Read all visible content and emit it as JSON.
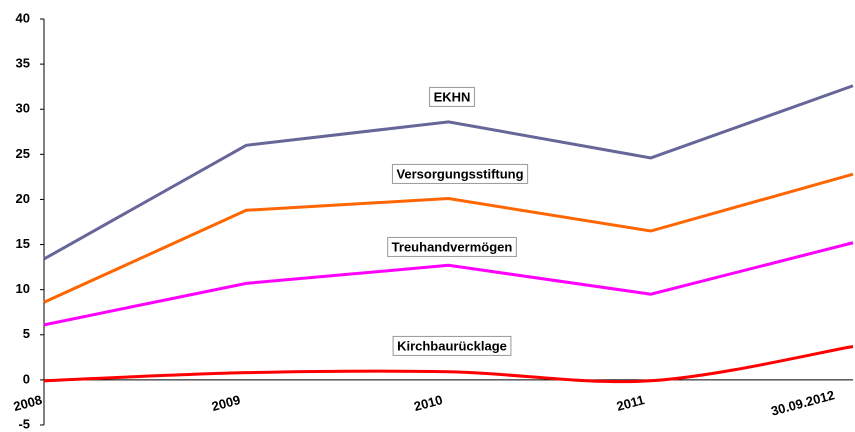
{
  "chart_data": {
    "type": "line",
    "categories": [
      "2008",
      "2009",
      "2010",
      "2011",
      "30.09.2012"
    ],
    "series": [
      {
        "name": "EKHN",
        "color": "#666699",
        "values": [
          13.4,
          26.0,
          28.6,
          24.6,
          32.6
        ]
      },
      {
        "name": "Versorgungsstiftung",
        "color": "#ff6600",
        "values": [
          8.6,
          18.8,
          20.1,
          16.5,
          22.8
        ]
      },
      {
        "name": "Treuhandvermögen",
        "color": "#ff00ff",
        "values": [
          6.1,
          10.7,
          12.7,
          9.5,
          15.2
        ]
      },
      {
        "name": "Kirchbaurücklage",
        "color": "#ff0000",
        "values": [
          -0.1,
          0.8,
          0.9,
          -0.1,
          3.7
        ],
        "smooth": true
      }
    ],
    "ylim": [
      -5,
      40
    ],
    "yticks": [
      -5,
      0,
      5,
      10,
      15,
      20,
      25,
      30,
      35,
      40
    ],
    "grid": false
  }
}
